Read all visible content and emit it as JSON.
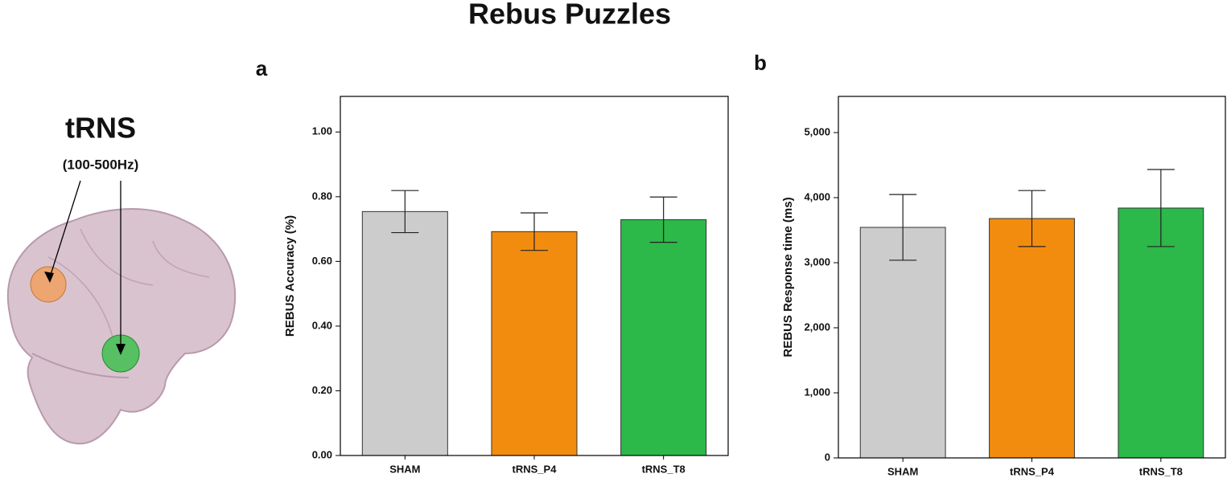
{
  "title": "Rebus Puzzles",
  "illustration": {
    "label": "tRNS",
    "sublabel": "(100-500Hz)"
  },
  "chart_data": [
    {
      "type": "bar",
      "panel": "a",
      "ylabel": "REBUS Accuracy (%)",
      "categories": [
        "SHAM",
        "tRNS_P4",
        "tRNS_T8"
      ],
      "colors": [
        "#cccccc",
        "#f28c0f",
        "#2db84a"
      ],
      "values": [
        0.754,
        0.692,
        0.729
      ],
      "errors": [
        0.065,
        0.058,
        0.07
      ],
      "ylim": [
        0,
        1.11
      ],
      "yticks": [
        {
          "value": 0,
          "label": "0.00"
        },
        {
          "value": 0.2,
          "label": "0.20"
        },
        {
          "value": 0.4,
          "label": "0.40"
        },
        {
          "value": 0.6,
          "label": "0.60"
        },
        {
          "value": 0.8,
          "label": "0.80"
        },
        {
          "value": 1,
          "label": "1.00"
        }
      ]
    },
    {
      "type": "bar",
      "panel": "b",
      "ylabel": "REBUS Response time (ms)",
      "categories": [
        "SHAM",
        "tRNS_P4",
        "tRNS_T8"
      ],
      "colors": [
        "#cccccc",
        "#f28c0f",
        "#2db84a"
      ],
      "values": [
        3543,
        3679,
        3840
      ],
      "errors": [
        505,
        430,
        592
      ],
      "ylim": [
        0,
        5556
      ],
      "yticks": [
        0,
        {
          "value": 1000,
          "label": "1,000"
        },
        {
          "value": 2000,
          "label": "2,000"
        },
        {
          "value": 3000,
          "label": "3,000"
        },
        {
          "value": 4000,
          "label": "4,000"
        },
        {
          "value": 5000,
          "label": "5,000"
        }
      ]
    }
  ]
}
